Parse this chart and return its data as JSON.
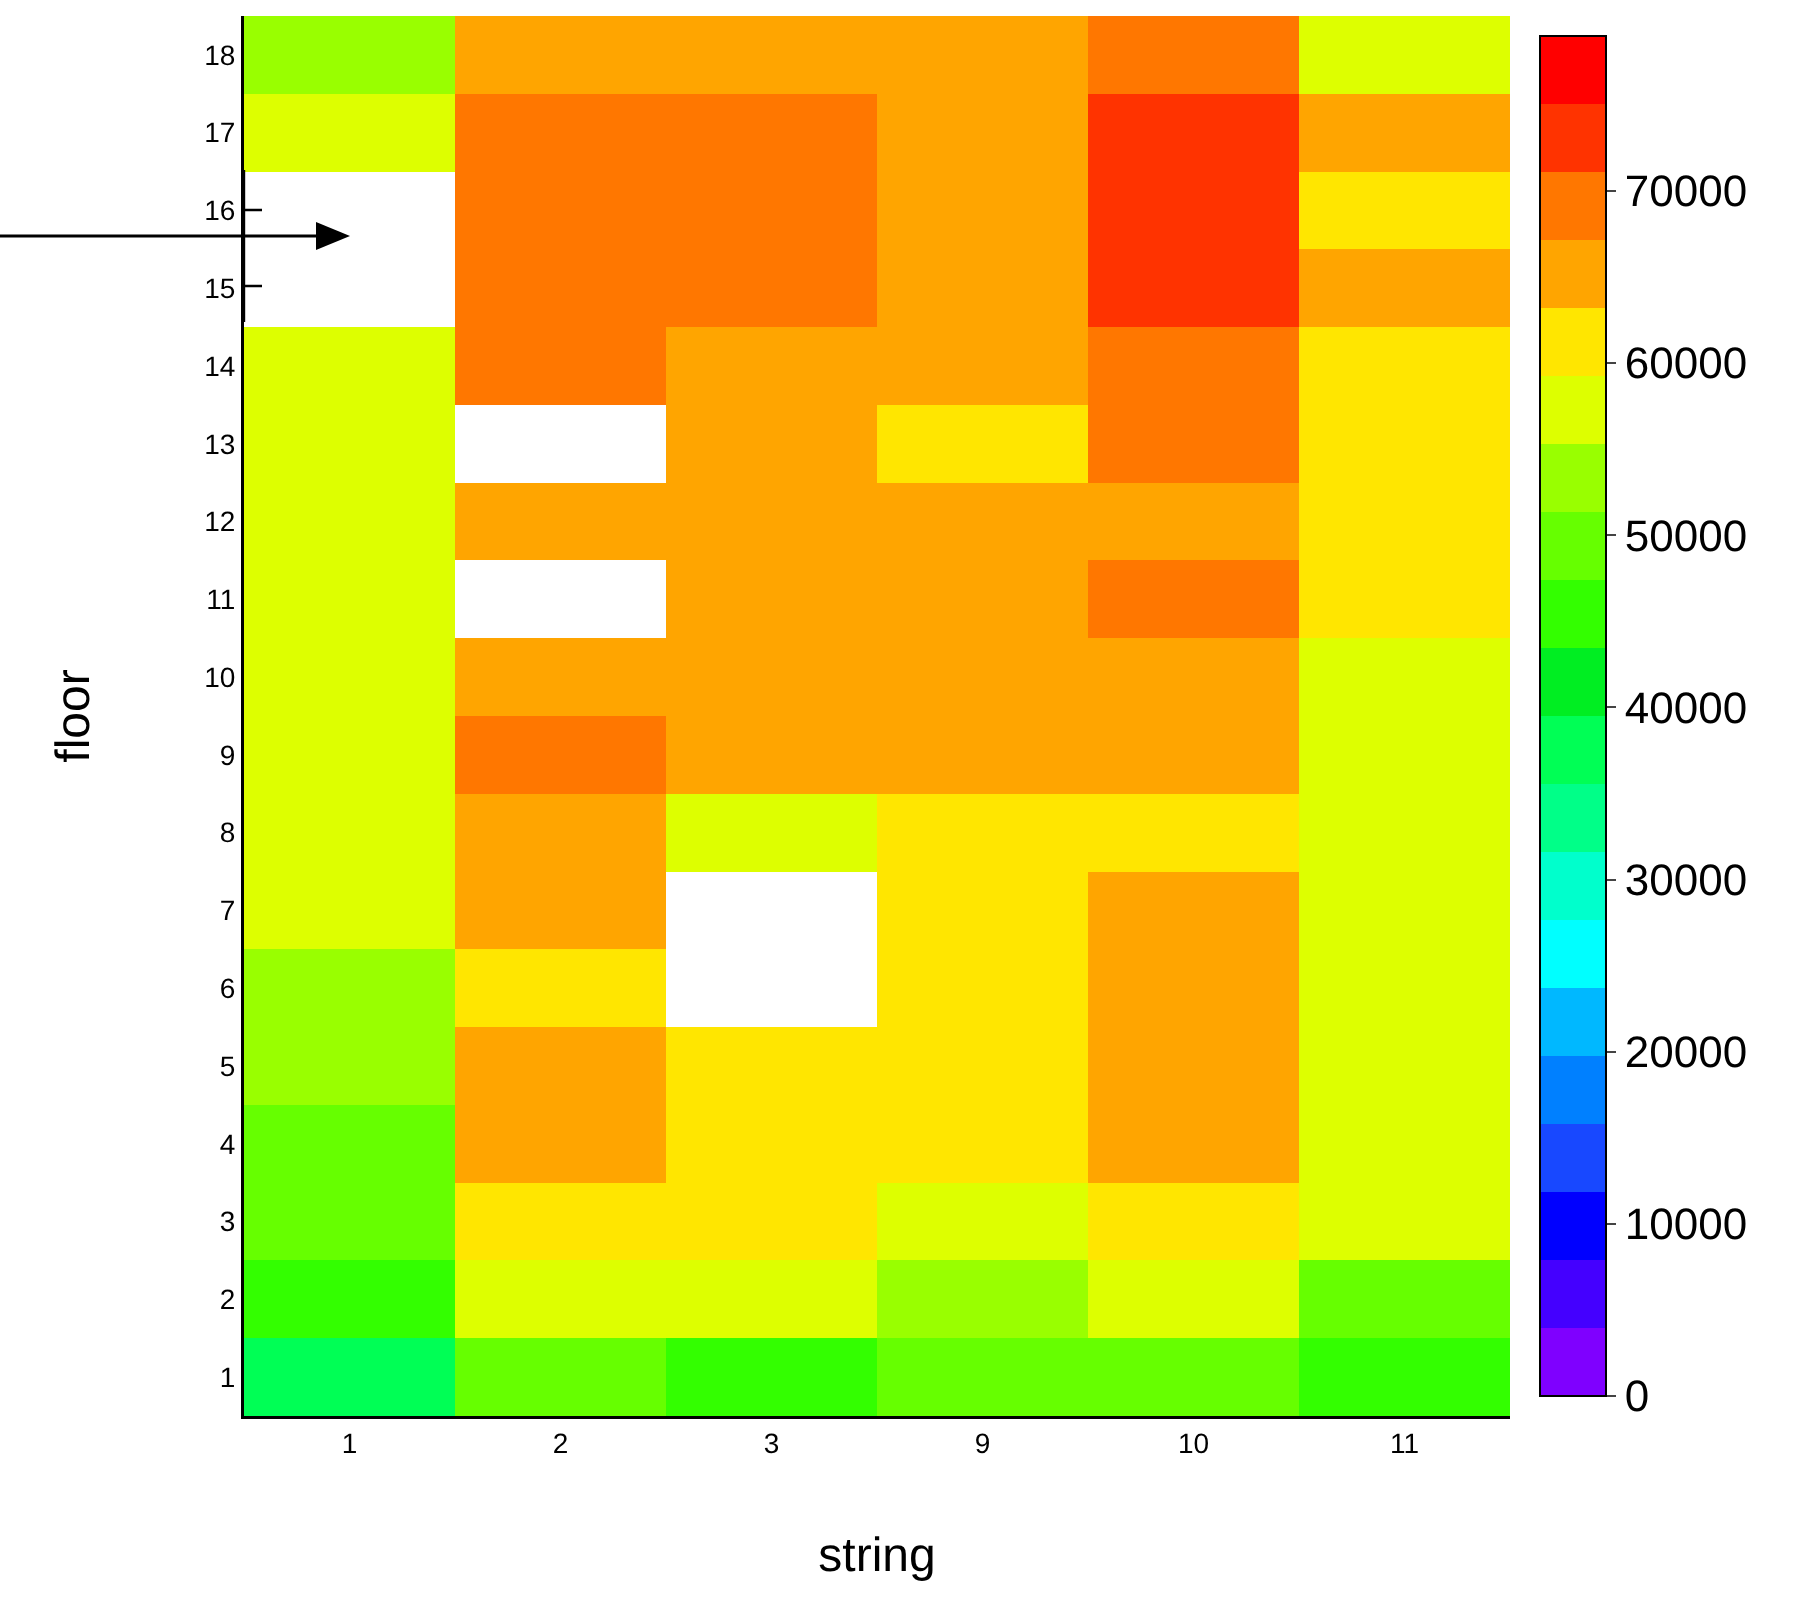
{
  "chart_data": {
    "type": "heatmap",
    "xlabel": "string",
    "ylabel": "floor",
    "categories": [
      "1",
      "2",
      "3",
      "9",
      "10",
      "11"
    ],
    "y_categories": [
      "18",
      "17",
      "16",
      "15",
      "14",
      "13",
      "12",
      "11",
      "10",
      "9",
      "8",
      "7",
      "6",
      "5",
      "4",
      "3",
      "2",
      "1"
    ],
    "cells": [
      [
        53500,
        65000,
        65000,
        65000,
        69000,
        57500
      ],
      [
        57500,
        69000,
        69000,
        65000,
        73000,
        65000
      ],
      [
        null,
        69000,
        69000,
        65000,
        73000,
        61000
      ],
      [
        null,
        69000,
        69000,
        65000,
        73000,
        65000
      ],
      [
        57500,
        69000,
        65000,
        65000,
        69000,
        61000
      ],
      [
        57500,
        null,
        65000,
        61000,
        69000,
        61000
      ],
      [
        57500,
        65000,
        65000,
        65000,
        65000,
        61000
      ],
      [
        57500,
        null,
        65000,
        65000,
        69000,
        61000
      ],
      [
        57500,
        65000,
        65000,
        65000,
        65000,
        57500
      ],
      [
        57500,
        69000,
        65000,
        65000,
        65000,
        57500
      ],
      [
        57500,
        65000,
        57500,
        61000,
        61000,
        57500
      ],
      [
        57500,
        65000,
        null,
        61000,
        65000,
        57500
      ],
      [
        53500,
        61000,
        null,
        61000,
        65000,
        57500
      ],
      [
        53500,
        65000,
        61000,
        61000,
        65000,
        57500
      ],
      [
        49500,
        65000,
        61000,
        61000,
        65000,
        57500
      ],
      [
        49500,
        61000,
        61000,
        57500,
        61000,
        57500
      ],
      [
        45500,
        57500,
        57500,
        53500,
        57500,
        49500
      ],
      [
        37500,
        49500,
        45500,
        49500,
        49500,
        45500
      ]
    ],
    "clim": [
      0,
      79000
    ],
    "cticks": [
      0,
      10000,
      20000,
      30000,
      40000,
      50000,
      60000,
      70000
    ]
  }
}
